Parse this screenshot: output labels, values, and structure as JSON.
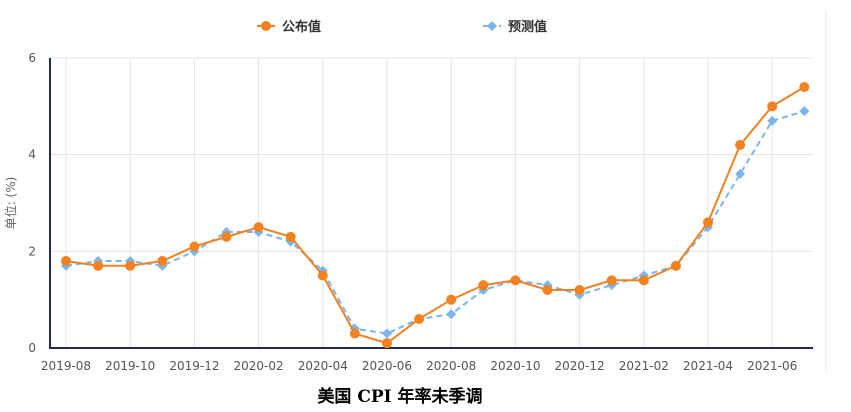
{
  "chart_data": {
    "type": "line",
    "title": "美国 CPI 年率未季调",
    "xlabel": "",
    "ylabel": "单位: (%)",
    "ylim": [
      0,
      6
    ],
    "yticks": [
      "0",
      "2",
      "4",
      "6"
    ],
    "grid": true,
    "legend_position": "top",
    "categories": [
      "2019-08",
      "2019-09",
      "2019-10",
      "2019-11",
      "2019-12",
      "2020-01",
      "2020-02",
      "2020-03",
      "2020-04",
      "2020-05",
      "2020-06",
      "2020-07",
      "2020-08",
      "2020-09",
      "2020-10",
      "2020-11",
      "2020-12",
      "2021-01",
      "2021-02",
      "2021-03",
      "2021-04",
      "2021-05",
      "2021-06",
      "2021-07"
    ],
    "xtick_labels": [
      "2019-08",
      "2019-10",
      "2019-12",
      "2020-02",
      "2020-04",
      "2020-06",
      "2020-08",
      "2020-10",
      "2020-12",
      "2021-02",
      "2021-04",
      "2021-06"
    ],
    "series": [
      {
        "name": "公布值",
        "color": "#f28121",
        "marker": "circle",
        "line_style": "solid",
        "values": [
          1.8,
          1.7,
          1.7,
          1.8,
          2.1,
          2.3,
          2.5,
          2.3,
          1.5,
          0.3,
          0.1,
          0.6,
          1.0,
          1.3,
          1.4,
          1.2,
          1.2,
          1.4,
          1.4,
          1.7,
          2.6,
          4.2,
          5.0,
          5.4
        ]
      },
      {
        "name": "预测值",
        "color": "#7cb5ec",
        "marker": "diamond",
        "line_style": "dashed",
        "values": [
          1.7,
          1.8,
          1.8,
          1.7,
          2.0,
          2.4,
          2.4,
          2.2,
          1.6,
          0.4,
          0.3,
          0.6,
          0.7,
          1.2,
          1.4,
          1.3,
          1.1,
          1.3,
          1.5,
          1.7,
          2.5,
          3.6,
          4.7,
          4.9
        ]
      }
    ]
  }
}
